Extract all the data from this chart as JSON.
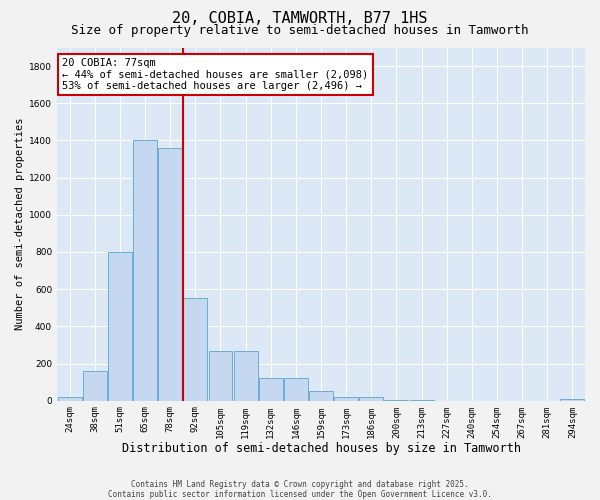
{
  "title": "20, COBIA, TAMWORTH, B77 1HS",
  "subtitle": "Size of property relative to semi-detached houses in Tamworth",
  "xlabel": "Distribution of semi-detached houses by size in Tamworth",
  "ylabel": "Number of semi-detached properties",
  "categories": [
    "24sqm",
    "38sqm",
    "51sqm",
    "65sqm",
    "78sqm",
    "92sqm",
    "105sqm",
    "119sqm",
    "132sqm",
    "146sqm",
    "159sqm",
    "173sqm",
    "186sqm",
    "200sqm",
    "213sqm",
    "227sqm",
    "240sqm",
    "254sqm",
    "267sqm",
    "281sqm",
    "294sqm"
  ],
  "values": [
    20,
    160,
    800,
    1400,
    1360,
    550,
    270,
    270,
    120,
    120,
    50,
    20,
    20,
    5,
    5,
    0,
    0,
    0,
    0,
    0,
    10
  ],
  "bar_color": "#c5d8f0",
  "bar_edge_color": "#6aadd5",
  "vline_color": "#cc0000",
  "annotation_line1": "20 COBIA: 77sqm",
  "annotation_line2": "← 44% of semi-detached houses are smaller (2,098)",
  "annotation_line3": "53% of semi-detached houses are larger (2,496) →",
  "annotation_box_color": "#ffffff",
  "annotation_box_edge_color": "#cc0000",
  "ylim_max": 1900,
  "yticks": [
    0,
    200,
    400,
    600,
    800,
    1000,
    1200,
    1400,
    1600,
    1800
  ],
  "plot_bg_color": "#dde8f6",
  "fig_bg_color": "#f2f2f2",
  "footer_line1": "Contains HM Land Registry data © Crown copyright and database right 2025.",
  "footer_line2": "Contains public sector information licensed under the Open Government Licence v3.0.",
  "title_fontsize": 11,
  "subtitle_fontsize": 9,
  "xlabel_fontsize": 8.5,
  "ylabel_fontsize": 7.5,
  "tick_fontsize": 6.5,
  "annotation_fontsize": 7.5,
  "footer_fontsize": 5.5
}
